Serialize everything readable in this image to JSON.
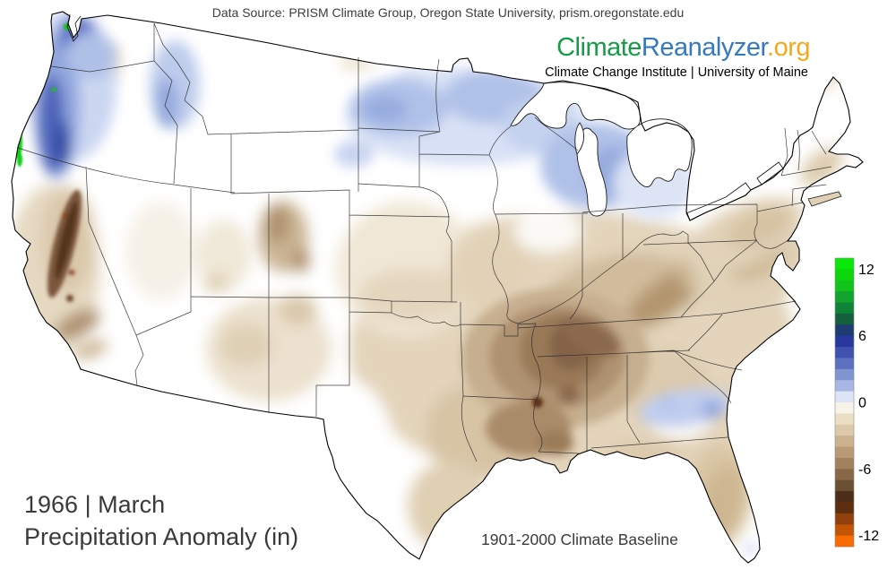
{
  "header": {
    "data_source": "Data Source: PRISM Climate Group, Oregon State University, prism.oregonstate.edu",
    "brand": {
      "climate": "Climate",
      "reanalyzer": "Reanalyzer",
      "org": ".org",
      "climate_color": "#169c47",
      "reanalyzer_color": "#3579c1",
      "org_color": "#f6a81c"
    },
    "institute": "Climate Change Institute | University of Maine"
  },
  "titles": {
    "line1": "1966 | March",
    "line2": "Precipitation Anomaly (in)",
    "baseline": "1901-2000 Climate Baseline"
  },
  "colorbar": {
    "unit": "in",
    "tick_labels": [
      "12",
      "6",
      "0",
      "-6",
      "-12"
    ],
    "tick_values": [
      12,
      6,
      0,
      -6,
      -12
    ],
    "value_range": [
      -13,
      13
    ],
    "colors_top_to_bottom": [
      "#0AE80A",
      "#0CD60C",
      "#14C21C",
      "#12A42E",
      "#0F8438",
      "#14603E",
      "#1C3C72",
      "#28389E",
      "#4152AE",
      "#5D70C0",
      "#8194D2",
      "#A7B6E2",
      "#DDE4F6",
      "#F8F3E8",
      "#EBDEC4",
      "#DCC8AA",
      "#CBB18E",
      "#B89A75",
      "#A2825C",
      "#886848",
      "#6C5034",
      "#4C2E1B",
      "#5E2E10",
      "#8F400C",
      "#C35405",
      "#F96A00"
    ]
  },
  "map": {
    "region_label": "Contiguous United States precipitation anomaly map",
    "anomaly_palette": {
      "strong_positive_green": "#10CE15",
      "positive_blue": "#28389E",
      "light_positive_blue": "#B0C1E8",
      "zero_white": "#FFFFFF",
      "light_negative_tan": "#E3D4BB",
      "negative_brown": "#846348",
      "strong_negative_orange": "#F96A00"
    }
  }
}
